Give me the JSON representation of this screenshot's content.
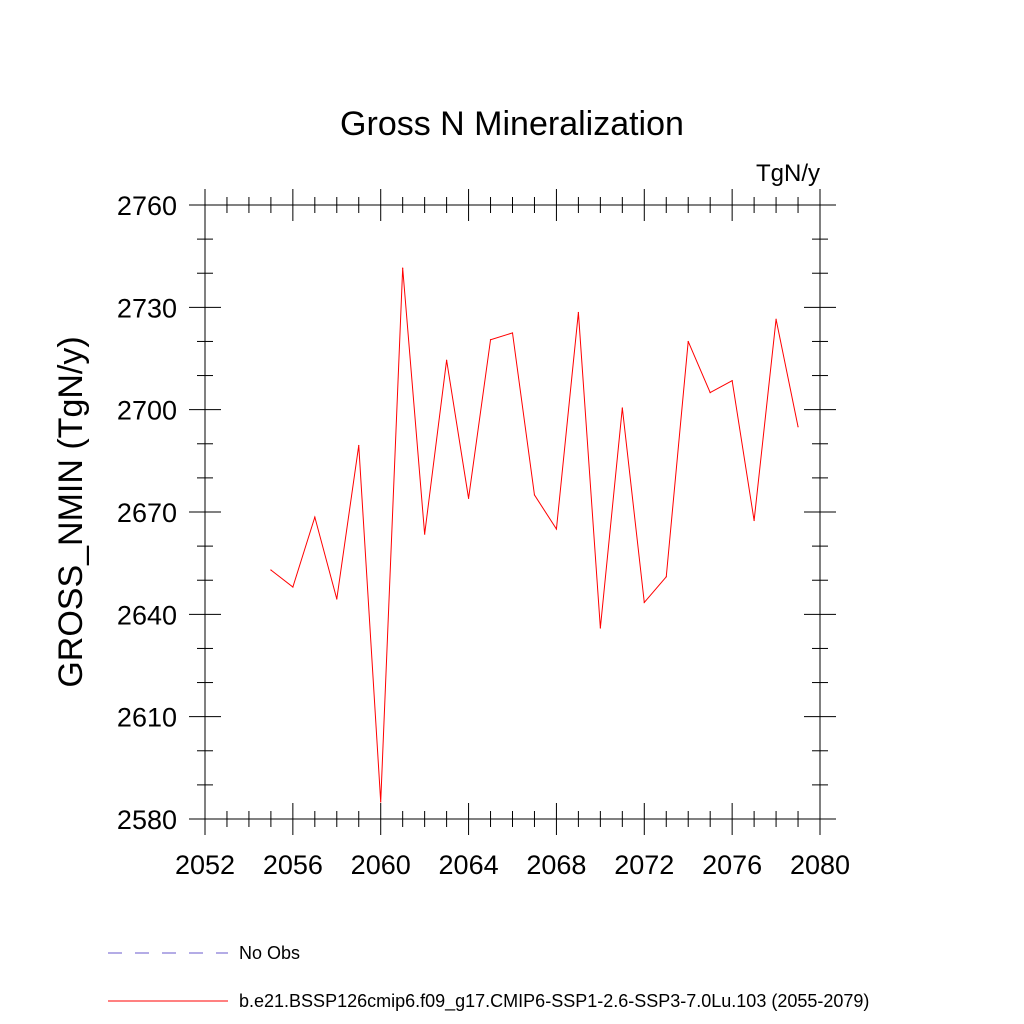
{
  "chart_data": {
    "type": "line",
    "title": "Gross N Mineralization",
    "units": "TgN/y",
    "xlabel": "",
    "ylabel": "GROSS_NMIN  (TgN/y)",
    "xlim": [
      2052,
      2080
    ],
    "ylim": [
      2580,
      2760
    ],
    "xticks": [
      2052,
      2056,
      2060,
      2064,
      2068,
      2072,
      2076,
      2080
    ],
    "yticks": [
      2580,
      2610,
      2640,
      2670,
      2700,
      2730,
      2760
    ],
    "x_minor_step": 1,
    "y_minor_step": 10,
    "grid": false,
    "legend": [
      {
        "label": "No Obs",
        "color": "#6a5acd",
        "dash": "dashed"
      },
      {
        "label": "b.e21.BSSP126cmip6.f09_g17.CMIP6-SSP1-2.6-SSP3-7.0Lu.103 (2055-2079)",
        "color": "#ff0000",
        "dash": "solid"
      }
    ],
    "series": [
      {
        "name": "b.e21.BSSP126cmip6.f09_g17.CMIP6-SSP1-2.6-SSP3-7.0Lu.103 (2055-2079)",
        "color": "#ff0000",
        "x": [
          2055,
          2056,
          2057,
          2058,
          2059,
          2060,
          2061,
          2062,
          2063,
          2064,
          2065,
          2066,
          2067,
          2068,
          2069,
          2070,
          2071,
          2072,
          2073,
          2074,
          2075,
          2076,
          2077,
          2078,
          2079
        ],
        "values": [
          2653,
          2648,
          2668.5,
          2644.5,
          2689.5,
          2585,
          2741.5,
          2663.5,
          2714.5,
          2674,
          2720.5,
          2722.5,
          2675,
          2665,
          2728.5,
          2636,
          2700.5,
          2643.5,
          2651,
          2720,
          2705,
          2708.5,
          2667.5,
          2726.5,
          2695
        ]
      }
    ]
  }
}
